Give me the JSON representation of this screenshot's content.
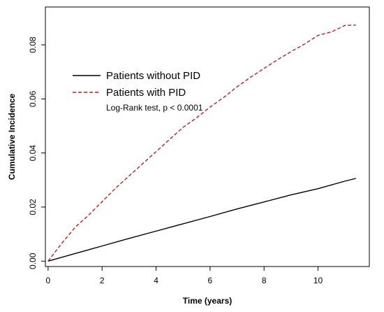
{
  "chart_data": {
    "type": "line",
    "title": "",
    "xlabel": "Time (years)",
    "ylabel": "Cumulative Incidence",
    "xlim": [
      -0.1,
      11.9
    ],
    "ylim": [
      -0.002,
      0.094
    ],
    "x_ticks": [
      "0",
      "2",
      "4",
      "6",
      "8",
      "10"
    ],
    "y_ticks": [
      "0.00",
      "0.02",
      "0.04",
      "0.06",
      "0.08"
    ],
    "grid": false,
    "legend_position": "top-left",
    "annotation": "Log-Rank test, p < 0.0001",
    "series": [
      {
        "name": "Patients without PID",
        "color": "#000000",
        "dash": "solid",
        "x": [
          0,
          1,
          2,
          3,
          4,
          5,
          6,
          7,
          8,
          9,
          10,
          11,
          11.4
        ],
        "y": [
          0.0,
          0.0028,
          0.0056,
          0.0084,
          0.0111,
          0.0138,
          0.0165,
          0.0193,
          0.0219,
          0.0245,
          0.0268,
          0.0296,
          0.0306
        ]
      },
      {
        "name": "Patients with PID",
        "color": "#b22222",
        "dash": "dashed",
        "x": [
          0,
          0.5,
          1,
          1.5,
          2,
          2.5,
          3,
          3.5,
          4,
          4.5,
          5,
          5.5,
          6,
          6.5,
          7,
          7.5,
          8,
          8.5,
          9,
          9.5,
          10,
          10.5,
          11,
          11.4
        ],
        "y": [
          0.0,
          0.0065,
          0.0125,
          0.017,
          0.022,
          0.027,
          0.0315,
          0.036,
          0.0405,
          0.045,
          0.0495,
          0.053,
          0.057,
          0.0605,
          0.0645,
          0.068,
          0.0713,
          0.0745,
          0.0775,
          0.0803,
          0.0835,
          0.0848,
          0.0872,
          0.0873
        ]
      }
    ]
  }
}
